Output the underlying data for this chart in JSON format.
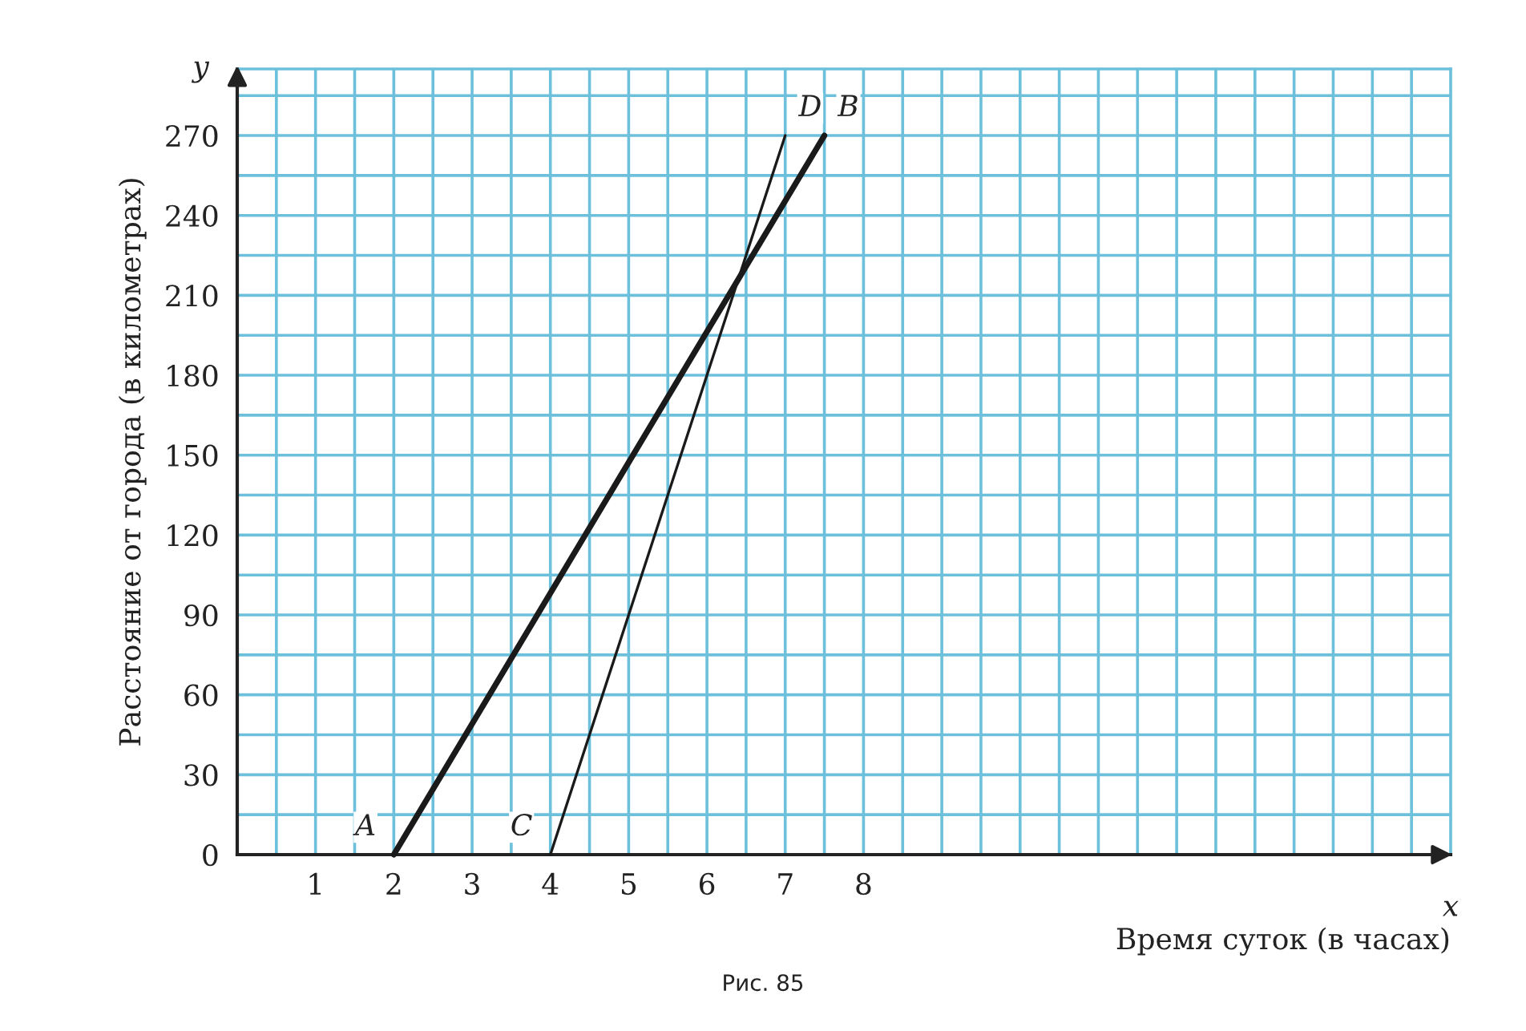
{
  "chart_data": {
    "type": "line",
    "xlabel": "Время суток (в часах)",
    "ylabel": "Расстояние от города (в километрах)",
    "series": [
      {
        "color": "#1a1a1a",
        "x": [
          2,
          7.5
        ],
        "values": [
          0,
          270
        ]
      },
      {
        "color": "#1a1a1a",
        "x": [
          4,
          7
        ],
        "values": [
          0,
          270
        ]
      }
    ],
    "xlim": [
      0,
      15.5
    ],
    "ylim": [
      0,
      295
    ],
    "xticks": [
      {
        "value": 0.5,
        "label": null
      },
      1,
      {
        "value": 1.5,
        "label": null
      },
      2,
      {
        "value": 2.5,
        "label": null
      },
      3,
      {
        "value": 3.5,
        "label": null
      },
      4,
      {
        "value": 4.5,
        "label": null
      },
      5,
      {
        "value": 5.5,
        "label": null
      },
      6,
      {
        "value": 6.5,
        "label": null
      },
      7,
      {
        "value": 7.5,
        "label": null
      },
      8,
      {
        "value": 8.5,
        "label": null
      },
      {
        "value": 9,
        "label": null
      },
      {
        "value": 9.5,
        "label": null
      },
      {
        "value": 10,
        "label": null
      },
      {
        "value": 10.5,
        "label": null
      },
      {
        "value": 11,
        "label": null
      },
      {
        "value": 11.5,
        "label": null
      },
      {
        "value": 12,
        "label": null
      },
      {
        "value": 12.5,
        "label": null
      },
      {
        "value": 13,
        "label": null
      },
      {
        "value": 13.5,
        "label": null
      },
      {
        "value": 14,
        "label": null
      },
      {
        "value": 14.5,
        "label": null
      },
      {
        "value": 15,
        "label": null
      }
    ],
    "yticks": [
      0,
      {
        "value": 15,
        "label": null
      },
      30,
      {
        "value": 45,
        "label": null
      },
      60,
      {
        "value": 75,
        "label": null
      },
      90,
      {
        "value": 105,
        "label": null
      },
      120,
      {
        "value": 135,
        "label": null
      },
      150,
      {
        "value": 165,
        "label": null
      },
      180,
      {
        "value": 195,
        "label": null
      },
      210,
      {
        "value": 225,
        "label": null
      },
      240,
      {
        "value": 255,
        "label": null
      },
      270,
      {
        "value": 285,
        "label": null
      }
    ],
    "grid": true,
    "marker": "none",
    "line_style": "solid",
    "annotations": [
      {
        "text": "A",
        "x": 2,
        "y": 0
      },
      {
        "text": "B",
        "x": 7.5,
        "y": 270
      },
      {
        "text": "C",
        "x": 4,
        "y": 0
      },
      {
        "text": "D",
        "x": 7,
        "y": 270
      },
      "x",
      "y",
      "Рис. 85"
    ]
  }
}
